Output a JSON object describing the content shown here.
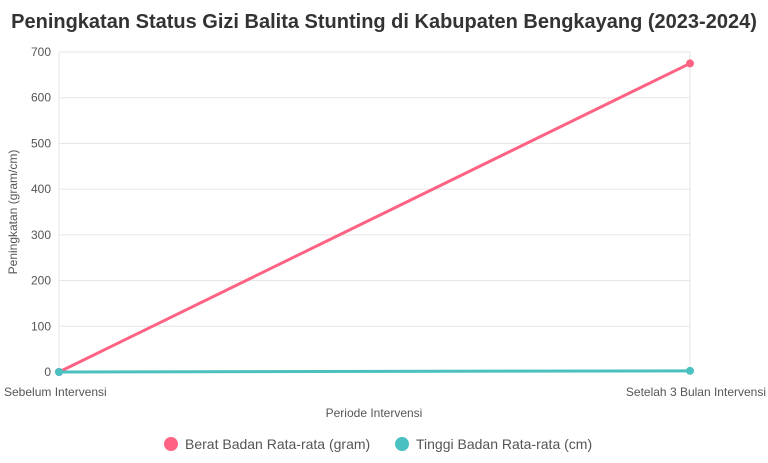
{
  "chart_data": {
    "type": "line",
    "title": "Peningkatan Status Gizi Balita Stunting di Kabupaten Bengkayang (2023-2024)",
    "xlabel": "Periode Intervensi",
    "ylabel": "Peningkatan (gram/cm)",
    "categories": [
      "Sebelum Intervensi",
      "Setelah 3 Bulan Intervensi"
    ],
    "ylim": [
      0,
      700
    ],
    "yticks": [
      0,
      100,
      200,
      300,
      400,
      500,
      600,
      700
    ],
    "grid": true,
    "legend_position": "bottom",
    "series": [
      {
        "name": "Berat Badan Rata-rata (gram)",
        "values": [
          0,
          675
        ],
        "color": "#ff6384"
      },
      {
        "name": "Tinggi Badan Rata-rata (cm)",
        "values": [
          0,
          2.5
        ],
        "color": "#4bc0c0"
      }
    ]
  }
}
